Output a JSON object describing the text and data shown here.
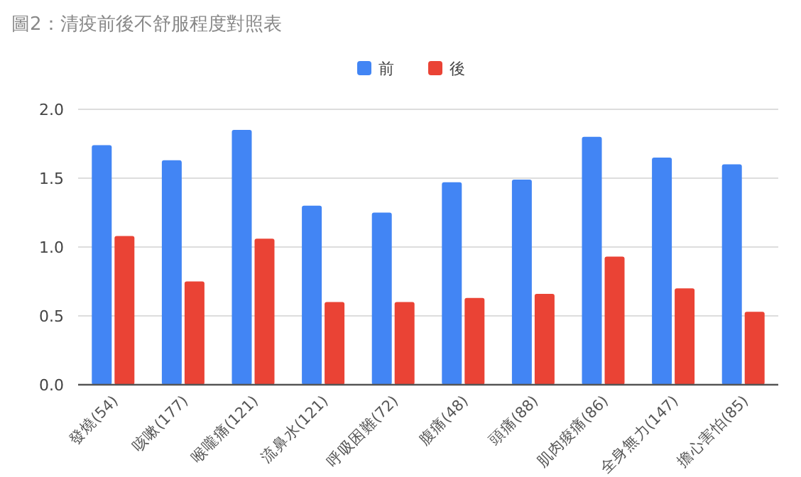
{
  "chart_data": {
    "type": "bar",
    "title": "圖2：清疫前後不舒服程度對照表",
    "categories": [
      "發燒(54)",
      "咳嗽(177)",
      "喉嚨痛(121)",
      "流鼻水(121)",
      "呼吸困難(72)",
      "腹痛(48)",
      "頭痛(88)",
      "肌肉痠痛(86)",
      "全身無力(147)",
      "擔心害怕(85)"
    ],
    "series": [
      {
        "name": "前",
        "color": "#4285f4",
        "values": [
          1.74,
          1.63,
          1.85,
          1.3,
          1.25,
          1.47,
          1.49,
          1.8,
          1.65,
          1.6
        ]
      },
      {
        "name": "後",
        "color": "#ea4335",
        "values": [
          1.08,
          0.75,
          1.06,
          0.6,
          0.6,
          0.63,
          0.66,
          0.93,
          0.7,
          0.53
        ]
      }
    ],
    "ylim": [
      0,
      2
    ],
    "yticks": [
      {
        "value": 0,
        "label": "0.0"
      },
      {
        "value": 0.5,
        "label": "0.5"
      },
      {
        "value": 1,
        "label": "1.0"
      },
      {
        "value": 1.5,
        "label": "1.5"
      },
      {
        "value": 2,
        "label": "2.0"
      }
    ],
    "grid": "y",
    "legend": "top"
  }
}
